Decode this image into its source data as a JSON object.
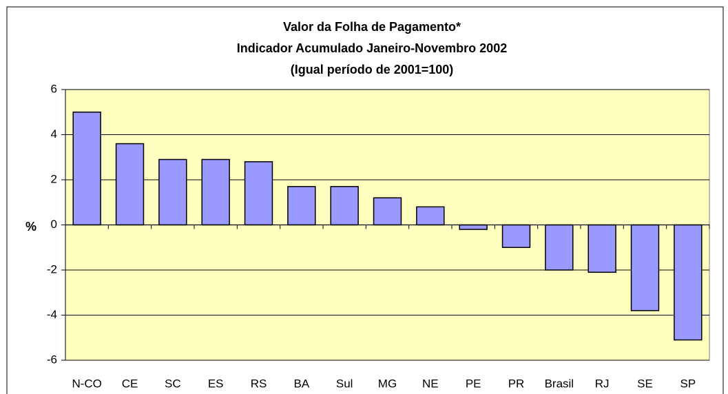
{
  "chart_data": {
    "type": "bar",
    "title": [
      "Valor da Folha de Pagamento*",
      "Indicador Acumulado Janeiro-Novembro  2002",
      "(Igual período de 2001=100)"
    ],
    "y_label": "%",
    "categories": [
      "N-CO",
      "CE",
      "SC",
      "ES",
      "RS",
      "BA",
      "Sul",
      "MG",
      "NE",
      "PE",
      "PR",
      "Brasil",
      "RJ",
      "SE",
      "SP"
    ],
    "values": [
      5.0,
      3.6,
      2.9,
      2.9,
      2.8,
      1.7,
      1.7,
      1.2,
      0.8,
      -0.2,
      -1.0,
      -2.0,
      -2.1,
      -3.8,
      -5.1
    ],
    "color": "#9999ff",
    "ylim": [
      -6,
      6
    ],
    "yticks": [
      -6,
      -4,
      -2,
      0,
      2,
      4,
      6
    ],
    "grid": true
  }
}
